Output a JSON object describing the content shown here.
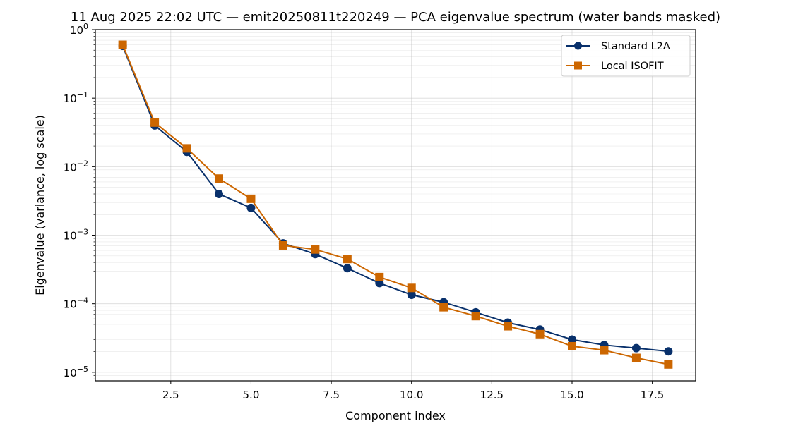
{
  "chart_data": {
    "type": "line",
    "title": "11 Aug 2025 22:02 UTC — emit20250811t220249 — PCA eigenvalue spectrum (water bands masked)",
    "xlabel": "Component index",
    "ylabel": "Eigenvalue (variance, log scale)",
    "xlim": [
      0.15,
      18.85
    ],
    "ylim": [
      7.5e-06,
      1.0
    ],
    "y_scale": "log",
    "x_ticks": [
      2.5,
      5.0,
      7.5,
      10.0,
      12.5,
      15.0,
      17.5
    ],
    "x_tick_labels": [
      "2.5",
      "5.0",
      "7.5",
      "10.0",
      "12.5",
      "15.0",
      "17.5"
    ],
    "y_ticks": [
      {
        "base": "10",
        "exp": "0",
        "value": 1
      },
      {
        "base": "10",
        "exp": "−1",
        "value": 0.1
      },
      {
        "base": "10",
        "exp": "−2",
        "value": 0.01
      },
      {
        "base": "10",
        "exp": "−3",
        "value": 0.001
      },
      {
        "base": "10",
        "exp": "−4",
        "value": 0.0001
      },
      {
        "base": "10",
        "exp": "−5",
        "value": 1e-05
      }
    ],
    "grid": true,
    "legend_position": "top-right",
    "x": [
      1,
      2,
      3,
      4,
      5,
      6,
      7,
      8,
      9,
      10,
      11,
      12,
      13,
      14,
      15,
      16,
      17,
      18
    ],
    "series": [
      {
        "name": "Standard L2A",
        "color": "#08306b",
        "marker": "circle",
        "values": [
          0.58,
          0.04,
          0.0165,
          0.004,
          0.0025,
          0.00076,
          0.00053,
          0.00033,
          0.0002,
          0.000135,
          0.000105,
          7.5e-05,
          5.3e-05,
          4.2e-05,
          3e-05,
          2.5e-05,
          2.25e-05,
          2.02e-05
        ]
      },
      {
        "name": "Local ISOFIT",
        "color": "#cc6600",
        "marker": "square",
        "values": [
          0.6,
          0.044,
          0.0185,
          0.0067,
          0.0034,
          0.00071,
          0.00062,
          0.00045,
          0.000245,
          0.00017,
          8.9e-05,
          6.6e-05,
          4.7e-05,
          3.6e-05,
          2.4e-05,
          2.1e-05,
          1.62e-05,
          1.3e-05
        ]
      }
    ]
  }
}
